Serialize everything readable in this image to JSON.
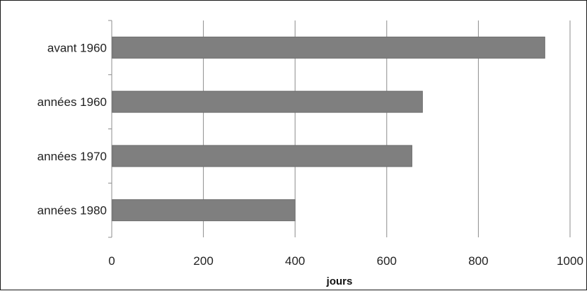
{
  "chart_data": {
    "type": "bar",
    "orientation": "horizontal",
    "categories": [
      "avant 1960",
      "années 1960",
      "années 1970",
      "années 1980"
    ],
    "values": [
      945,
      678,
      655,
      400
    ],
    "xlabel": "jours",
    "xlim": [
      0,
      1000
    ],
    "xticks": [
      "0",
      "200",
      "400",
      "600",
      "800",
      "1000"
    ],
    "grid": "vertical",
    "legend": "none",
    "bar_color": "#7f7f7f"
  }
}
